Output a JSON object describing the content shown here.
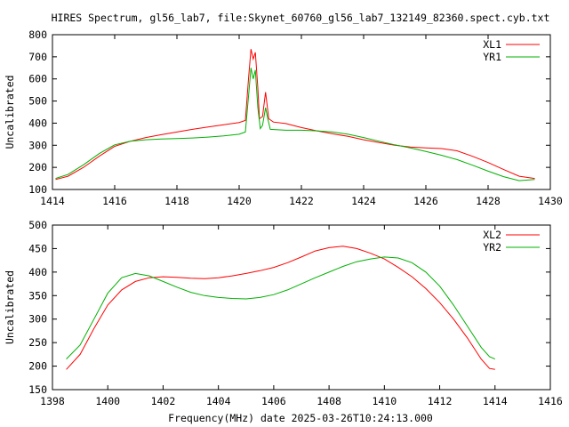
{
  "page_title": "HIRES Spectrum, gl56_lab7, file:Skynet_60760_gl56_lab7_132149_82360.spect.cyb.txt",
  "xlabel": "Frequency(MHz) date 2025-03-26T10:24:13.000",
  "colors": {
    "red": "#ff0000",
    "green": "#00b000",
    "axis": "#000000"
  },
  "chart_data": [
    {
      "type": "line",
      "ylabel": "Uncalibrated",
      "xlim": [
        1414,
        1430
      ],
      "ylim": [
        100,
        800
      ],
      "xticks": [
        1414,
        1416,
        1418,
        1420,
        1422,
        1424,
        1426,
        1428,
        1430
      ],
      "yticks": [
        100,
        200,
        300,
        400,
        500,
        600,
        700,
        800
      ],
      "legend_position": "top-right",
      "series": [
        {
          "name": "XL1",
          "color": "#ff0000",
          "points": [
            [
              1414.1,
              145
            ],
            [
              1414.5,
              160
            ],
            [
              1415.0,
              200
            ],
            [
              1415.5,
              250
            ],
            [
              1416.0,
              295
            ],
            [
              1416.5,
              318
            ],
            [
              1417.0,
              335
            ],
            [
              1417.5,
              348
            ],
            [
              1418.0,
              360
            ],
            [
              1418.5,
              372
            ],
            [
              1419.0,
              383
            ],
            [
              1419.5,
              393
            ],
            [
              1420.0,
              403
            ],
            [
              1420.2,
              412
            ],
            [
              1420.3,
              600
            ],
            [
              1420.38,
              735
            ],
            [
              1420.45,
              690
            ],
            [
              1420.52,
              720
            ],
            [
              1420.6,
              560
            ],
            [
              1420.65,
              420
            ],
            [
              1420.75,
              430
            ],
            [
              1420.85,
              540
            ],
            [
              1420.95,
              420
            ],
            [
              1421.1,
              405
            ],
            [
              1421.5,
              398
            ],
            [
              1422.0,
              380
            ],
            [
              1422.5,
              365
            ],
            [
              1423.0,
              352
            ],
            [
              1423.5,
              340
            ],
            [
              1424.0,
              325
            ],
            [
              1424.5,
              312
            ],
            [
              1425.0,
              300
            ],
            [
              1425.5,
              292
            ],
            [
              1426.0,
              288
            ],
            [
              1426.5,
              285
            ],
            [
              1427.0,
              275
            ],
            [
              1427.5,
              250
            ],
            [
              1428.0,
              222
            ],
            [
              1428.5,
              190
            ],
            [
              1429.0,
              160
            ],
            [
              1429.5,
              150
            ]
          ]
        },
        {
          "name": "YR1",
          "color": "#00b000",
          "points": [
            [
              1414.1,
              150
            ],
            [
              1414.5,
              168
            ],
            [
              1415.0,
              212
            ],
            [
              1415.5,
              262
            ],
            [
              1416.0,
              302
            ],
            [
              1416.5,
              318
            ],
            [
              1417.0,
              325
            ],
            [
              1417.5,
              328
            ],
            [
              1418.0,
              330
            ],
            [
              1418.5,
              333
            ],
            [
              1419.0,
              337
            ],
            [
              1419.5,
              342
            ],
            [
              1420.0,
              350
            ],
            [
              1420.2,
              360
            ],
            [
              1420.3,
              520
            ],
            [
              1420.38,
              650
            ],
            [
              1420.45,
              600
            ],
            [
              1420.52,
              640
            ],
            [
              1420.6,
              470
            ],
            [
              1420.68,
              375
            ],
            [
              1420.75,
              390
            ],
            [
              1420.85,
              470
            ],
            [
              1420.92,
              420
            ],
            [
              1421.0,
              372
            ],
            [
              1421.5,
              368
            ],
            [
              1422.0,
              368
            ],
            [
              1422.5,
              365
            ],
            [
              1423.0,
              360
            ],
            [
              1423.5,
              350
            ],
            [
              1424.0,
              335
            ],
            [
              1424.5,
              318
            ],
            [
              1425.0,
              302
            ],
            [
              1425.5,
              288
            ],
            [
              1426.0,
              272
            ],
            [
              1426.5,
              255
            ],
            [
              1427.0,
              235
            ],
            [
              1427.5,
              210
            ],
            [
              1428.0,
              183
            ],
            [
              1428.5,
              158
            ],
            [
              1429.0,
              140
            ],
            [
              1429.5,
              145
            ]
          ]
        }
      ]
    },
    {
      "type": "line",
      "ylabel": "Uncalibrated",
      "xlim": [
        1398,
        1416
      ],
      "ylim": [
        150,
        500
      ],
      "xticks": [
        1398,
        1400,
        1402,
        1404,
        1406,
        1408,
        1410,
        1412,
        1414,
        1416
      ],
      "yticks": [
        150,
        200,
        250,
        300,
        350,
        400,
        450,
        500
      ],
      "legend_position": "top-right",
      "series": [
        {
          "name": "XL2",
          "color": "#ff0000",
          "points": [
            [
              1398.5,
              193
            ],
            [
              1399.0,
              225
            ],
            [
              1399.5,
              280
            ],
            [
              1400.0,
              330
            ],
            [
              1400.5,
              362
            ],
            [
              1401.0,
              380
            ],
            [
              1401.5,
              388
            ],
            [
              1402.0,
              390
            ],
            [
              1402.5,
              389
            ],
            [
              1403.0,
              387
            ],
            [
              1403.5,
              386
            ],
            [
              1404.0,
              388
            ],
            [
              1404.5,
              392
            ],
            [
              1405.0,
              397
            ],
            [
              1405.5,
              403
            ],
            [
              1406.0,
              410
            ],
            [
              1406.5,
              420
            ],
            [
              1407.0,
              432
            ],
            [
              1407.5,
              445
            ],
            [
              1408.0,
              452
            ],
            [
              1408.5,
              455
            ],
            [
              1409.0,
              450
            ],
            [
              1409.5,
              440
            ],
            [
              1410.0,
              428
            ],
            [
              1410.5,
              410
            ],
            [
              1411.0,
              390
            ],
            [
              1411.5,
              365
            ],
            [
              1412.0,
              335
            ],
            [
              1412.5,
              300
            ],
            [
              1413.0,
              260
            ],
            [
              1413.5,
              215
            ],
            [
              1413.8,
              195
            ],
            [
              1414.0,
              193
            ]
          ]
        },
        {
          "name": "YR2",
          "color": "#00b000",
          "points": [
            [
              1398.5,
              215
            ],
            [
              1399.0,
              245
            ],
            [
              1399.5,
              300
            ],
            [
              1400.0,
              355
            ],
            [
              1400.5,
              388
            ],
            [
              1401.0,
              397
            ],
            [
              1401.5,
              392
            ],
            [
              1402.0,
              380
            ],
            [
              1402.5,
              368
            ],
            [
              1403.0,
              357
            ],
            [
              1403.5,
              350
            ],
            [
              1404.0,
              346
            ],
            [
              1404.5,
              344
            ],
            [
              1405.0,
              343
            ],
            [
              1405.5,
              346
            ],
            [
              1406.0,
              352
            ],
            [
              1406.5,
              362
            ],
            [
              1407.0,
              375
            ],
            [
              1407.5,
              388
            ],
            [
              1408.0,
              400
            ],
            [
              1408.5,
              412
            ],
            [
              1409.0,
              422
            ],
            [
              1409.5,
              428
            ],
            [
              1410.0,
              432
            ],
            [
              1410.5,
              430
            ],
            [
              1411.0,
              420
            ],
            [
              1411.5,
              400
            ],
            [
              1412.0,
              370
            ],
            [
              1412.5,
              330
            ],
            [
              1413.0,
              285
            ],
            [
              1413.5,
              240
            ],
            [
              1413.8,
              220
            ],
            [
              1414.0,
              215
            ]
          ]
        }
      ]
    }
  ]
}
